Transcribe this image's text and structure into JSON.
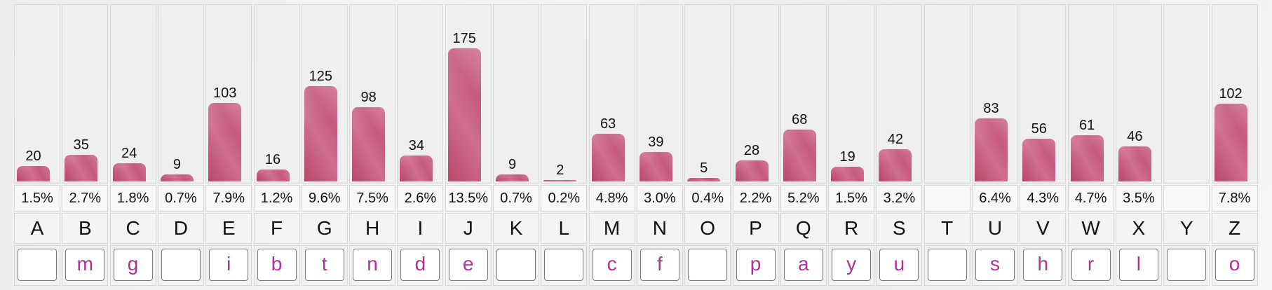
{
  "chart_data": {
    "type": "bar",
    "categories": [
      "A",
      "B",
      "C",
      "D",
      "E",
      "F",
      "G",
      "H",
      "I",
      "J",
      "K",
      "L",
      "M",
      "N",
      "O",
      "P",
      "Q",
      "R",
      "S",
      "T",
      "U",
      "V",
      "W",
      "X",
      "Y",
      "Z"
    ],
    "values": [
      20,
      35,
      24,
      9,
      103,
      16,
      125,
      98,
      34,
      175,
      9,
      2,
      63,
      39,
      5,
      28,
      68,
      19,
      42,
      null,
      83,
      56,
      61,
      46,
      null,
      102
    ],
    "value_labels": [
      "20",
      "35",
      "24",
      "9",
      "103",
      "16",
      "125",
      "98",
      "34",
      "175",
      "9",
      "2",
      "63",
      "39",
      "5",
      "28",
      "68",
      "19",
      "42",
      "",
      "83",
      "56",
      "61",
      "46",
      "",
      "102"
    ],
    "percentages": [
      "1.5%",
      "2.7%",
      "1.8%",
      "0.7%",
      "7.9%",
      "1.2%",
      "9.6%",
      "7.5%",
      "2.6%",
      "13.5%",
      "0.7%",
      "0.2%",
      "4.8%",
      "3.0%",
      "0.4%",
      "2.2%",
      "5.2%",
      "1.5%",
      "3.2%",
      "",
      "6.4%",
      "4.3%",
      "4.7%",
      "3.5%",
      "",
      "7.8%"
    ],
    "ylim": [
      0,
      175
    ],
    "grid": false
  },
  "substitutions": [
    "",
    "m",
    "g",
    "",
    "i",
    "b",
    "t",
    "n",
    "d",
    "e",
    "",
    "",
    "c",
    "f",
    "",
    "p",
    "a",
    "y",
    "u",
    "",
    "s",
    "h",
    "r",
    "l",
    "",
    "o"
  ],
  "colors": {
    "bar": "#c55a7d",
    "substitution_text": "#b0309a"
  }
}
